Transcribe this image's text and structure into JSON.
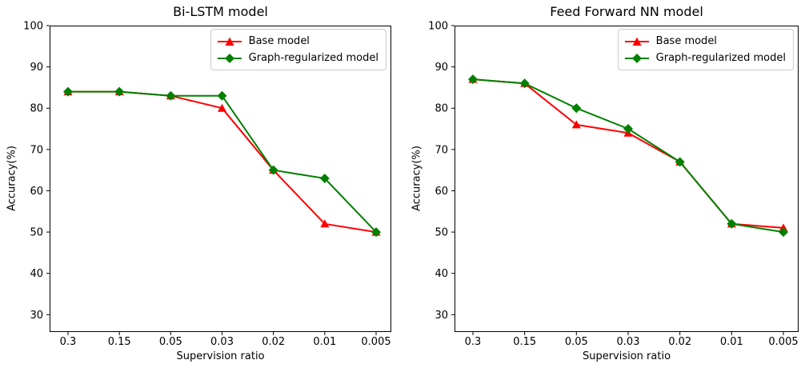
{
  "figure": {
    "background": "#ffffff",
    "text_color": "#000000",
    "spine_color": "#000000"
  },
  "chart_data": [
    {
      "type": "line",
      "title": "Bi-LSTM model",
      "xlabel": "Supervision ratio",
      "ylabel": "Accuracy(%)",
      "categories": [
        "0.3",
        "0.15",
        "0.05",
        "0.03",
        "0.02",
        "0.01",
        "0.005"
      ],
      "yticks": [
        30,
        40,
        50,
        60,
        70,
        80,
        90,
        100
      ],
      "ylim": [
        25.8,
        100
      ],
      "grid": false,
      "legend_position": "upper right",
      "series": [
        {
          "name": "Base model",
          "color": "#ff0000",
          "marker": "triangle",
          "values": [
            84,
            84,
            83,
            80,
            65,
            52,
            50
          ]
        },
        {
          "name": "Graph-regularized model",
          "color": "#008000",
          "marker": "diamond",
          "values": [
            84,
            84,
            83,
            83,
            65,
            63,
            50
          ]
        }
      ]
    },
    {
      "type": "line",
      "title": "Feed Forward NN model",
      "xlabel": "Supervision ratio",
      "ylabel": "Accuracy(%)",
      "categories": [
        "0.3",
        "0.15",
        "0.05",
        "0.03",
        "0.02",
        "0.01",
        "0.005"
      ],
      "yticks": [
        30,
        40,
        50,
        60,
        70,
        80,
        90,
        100
      ],
      "ylim": [
        25.8,
        100
      ],
      "grid": false,
      "legend_position": "upper right",
      "series": [
        {
          "name": "Base model",
          "color": "#ff0000",
          "marker": "triangle",
          "values": [
            87,
            86,
            76,
            74,
            67,
            52,
            51
          ]
        },
        {
          "name": "Graph-regularized model",
          "color": "#008000",
          "marker": "diamond",
          "values": [
            87,
            86,
            80,
            75,
            67,
            52,
            50
          ]
        }
      ]
    }
  ]
}
